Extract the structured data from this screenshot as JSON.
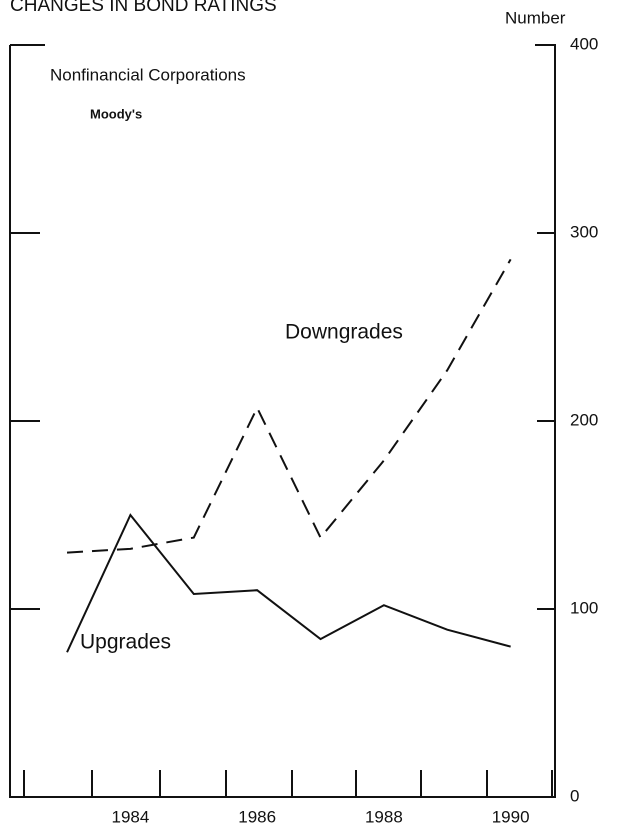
{
  "chart_data": {
    "type": "line",
    "title": "CHANGES IN BOND RATINGS",
    "subtitle": "Nonfinancial Corporations",
    "source": "Moody's",
    "y_label": "Number",
    "x": [
      1983,
      1984,
      1985,
      1986,
      1987,
      1988,
      1989,
      1990
    ],
    "series": [
      {
        "name": "Downgrades",
        "color": "#111111",
        "dash": true,
        "values": [
          130,
          132,
          138,
          207,
          138,
          179,
          227,
          286
        ]
      },
      {
        "name": "Upgrades",
        "color": "#111111",
        "dash": false,
        "values": [
          77,
          150,
          108,
          110,
          84,
          102,
          89,
          80
        ]
      }
    ],
    "xlim": [
      1982.1,
      1990.7
    ],
    "xticks": [
      1984,
      1986,
      1988,
      1990
    ],
    "ylim": [
      0,
      400
    ],
    "yticks": [
      0,
      100,
      200,
      300,
      400
    ]
  }
}
